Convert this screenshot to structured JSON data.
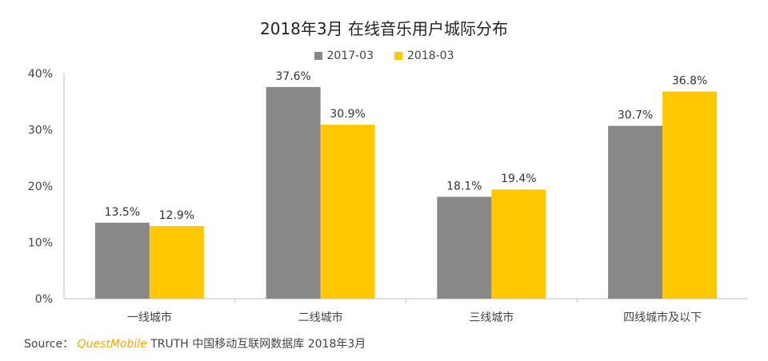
{
  "chart_data": {
    "type": "bar",
    "title": "2018年3月 在线音乐用户城际分布",
    "categories": [
      "一线城市",
      "二线城市",
      "三线城市",
      "四线城市及以下"
    ],
    "series": [
      {
        "name": "2017-03",
        "values": [
          13.5,
          37.6,
          18.1,
          30.7
        ],
        "labels": [
          "13.5%",
          "37.6%",
          "18.1%",
          "30.7%"
        ],
        "color": "#888888"
      },
      {
        "name": "2018-03",
        "values": [
          12.9,
          30.9,
          19.4,
          36.8
        ],
        "labels": [
          "12.9%",
          "30.9%",
          "19.4%",
          "36.8%"
        ],
        "color": "#ffc800"
      }
    ],
    "yticks": [
      "0%",
      "10%",
      "20%",
      "30%",
      "40%"
    ],
    "ylim": [
      0,
      40
    ],
    "grid": false,
    "legend": "top-center"
  },
  "source": {
    "label": "Source：",
    "brand": "QuestMobile",
    "text": "TRUTH 中国移动互联网数据库 2018年3月"
  }
}
